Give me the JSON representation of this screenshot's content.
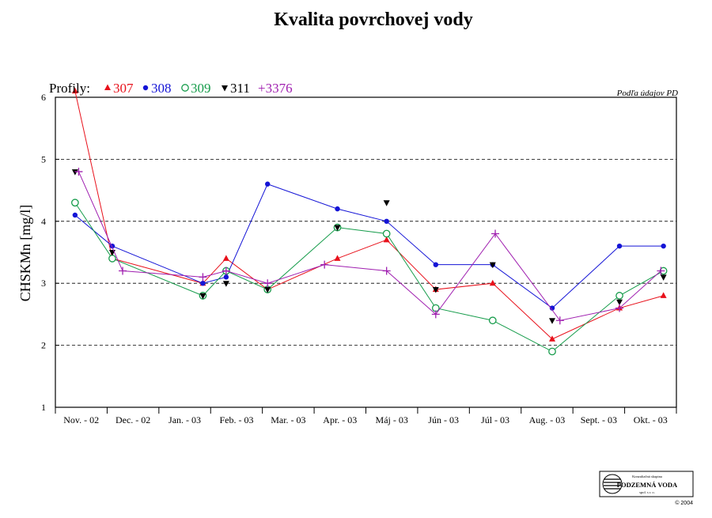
{
  "title": "Kvalita povrchovej vody",
  "source_note": "Podľa údajov PD",
  "legend": {
    "prefix": "Profily:",
    "entries": [
      {
        "name": "307",
        "color": "#e8111b",
        "marker": "triangle-up"
      },
      {
        "name": "308",
        "color": "#1414d6",
        "marker": "filled-circle"
      },
      {
        "name": "309",
        "color": "#169c4b",
        "marker": "open-circle"
      },
      {
        "name": "311",
        "color": "#000000",
        "marker": "triangle-down"
      },
      {
        "name": "3376",
        "color": "#a020b0",
        "marker": "plus"
      }
    ]
  },
  "logo": {
    "line1": "Konzultačná skupina",
    "line2": "PODZEMNÁ VODA",
    "line3": "spol. s r. o.",
    "copyright": "© 2004"
  },
  "chart_data": {
    "type": "line",
    "title": "Kvalita povrchovej vody",
    "xlabel": "",
    "ylabel": "CHSKMn [mg/l]",
    "ylim": [
      1,
      6
    ],
    "yticks": [
      "1",
      "2",
      "3",
      "4",
      "5",
      "6"
    ],
    "grid": "horizontal dashed at 2, 3, 4, 5",
    "legend_position": "top-left",
    "categories": [
      "Nov. - 02",
      "Dec. - 02",
      "Jan. - 03",
      "Feb. - 03",
      "Mar. - 03",
      "Apr. - 03",
      "Máj - 03",
      "Jún - 03",
      "Júl - 03",
      "Aug. - 03",
      "Sept. - 03",
      "Okt. - 03"
    ],
    "series": [
      {
        "name": "307",
        "connected": true,
        "points": [
          {
            "x": 0.38,
            "y": 6.1
          },
          {
            "x": 1.1,
            "y": 3.4
          },
          {
            "x": 2.85,
            "y": 3.0
          },
          {
            "x": 3.3,
            "y": 3.4
          },
          {
            "x": 4.1,
            "y": 2.9
          },
          {
            "x": 5.45,
            "y": 3.4
          },
          {
            "x": 6.4,
            "y": 3.7
          },
          {
            "x": 7.35,
            "y": 2.9
          },
          {
            "x": 8.45,
            "y": 3.0
          },
          {
            "x": 9.6,
            "y": 2.1
          },
          {
            "x": 10.9,
            "y": 2.6
          },
          {
            "x": 11.75,
            "y": 2.8
          }
        ]
      },
      {
        "name": "308",
        "connected": true,
        "points": [
          {
            "x": 0.38,
            "y": 4.1
          },
          {
            "x": 1.1,
            "y": 3.6
          },
          {
            "x": 2.85,
            "y": 3.0
          },
          {
            "x": 3.3,
            "y": 3.1
          },
          {
            "x": 4.1,
            "y": 4.6
          },
          {
            "x": 5.45,
            "y": 4.2
          },
          {
            "x": 6.4,
            "y": 4.0
          },
          {
            "x": 7.35,
            "y": 3.3
          },
          {
            "x": 8.45,
            "y": 3.3
          },
          {
            "x": 9.6,
            "y": 2.6
          },
          {
            "x": 10.9,
            "y": 3.6
          },
          {
            "x": 11.75,
            "y": 3.6
          }
        ]
      },
      {
        "name": "309",
        "connected": true,
        "points": [
          {
            "x": 0.38,
            "y": 4.3
          },
          {
            "x": 1.1,
            "y": 3.4
          },
          {
            "x": 2.85,
            "y": 2.8
          },
          {
            "x": 3.3,
            "y": 3.2
          },
          {
            "x": 4.1,
            "y": 2.9
          },
          {
            "x": 5.45,
            "y": 3.9
          },
          {
            "x": 6.4,
            "y": 3.8
          },
          {
            "x": 7.35,
            "y": 2.6
          },
          {
            "x": 8.45,
            "y": 2.4
          },
          {
            "x": 9.6,
            "y": 1.9
          },
          {
            "x": 10.9,
            "y": 2.8
          },
          {
            "x": 11.75,
            "y": 3.2
          }
        ]
      },
      {
        "name": "311",
        "connected": false,
        "points": [
          {
            "x": 0.38,
            "y": 4.8
          },
          {
            "x": 1.1,
            "y": 3.5
          },
          {
            "x": 2.85,
            "y": 2.8
          },
          {
            "x": 3.3,
            "y": 3.0
          },
          {
            "x": 4.1,
            "y": 2.9
          },
          {
            "x": 5.45,
            "y": 3.9
          },
          {
            "x": 6.4,
            "y": 4.3
          },
          {
            "x": 7.35,
            "y": 2.9
          },
          {
            "x": 8.45,
            "y": 3.3
          },
          {
            "x": 9.6,
            "y": 2.4
          },
          {
            "x": 10.9,
            "y": 2.7
          },
          {
            "x": 11.75,
            "y": 3.1
          }
        ]
      },
      {
        "name": "3376",
        "connected": true,
        "points": [
          {
            "x": 0.45,
            "y": 4.8
          },
          {
            "x": 1.3,
            "y": 3.2
          },
          {
            "x": 2.85,
            "y": 3.1
          },
          {
            "x": 3.3,
            "y": 3.2
          },
          {
            "x": 4.1,
            "y": 3.0
          },
          {
            "x": 5.2,
            "y": 3.3
          },
          {
            "x": 6.4,
            "y": 3.2
          },
          {
            "x": 7.35,
            "y": 2.5
          },
          {
            "x": 8.5,
            "y": 3.8
          },
          {
            "x": 9.75,
            "y": 2.4
          },
          {
            "x": 10.9,
            "y": 2.6
          },
          {
            "x": 11.7,
            "y": 3.2
          }
        ]
      }
    ]
  }
}
